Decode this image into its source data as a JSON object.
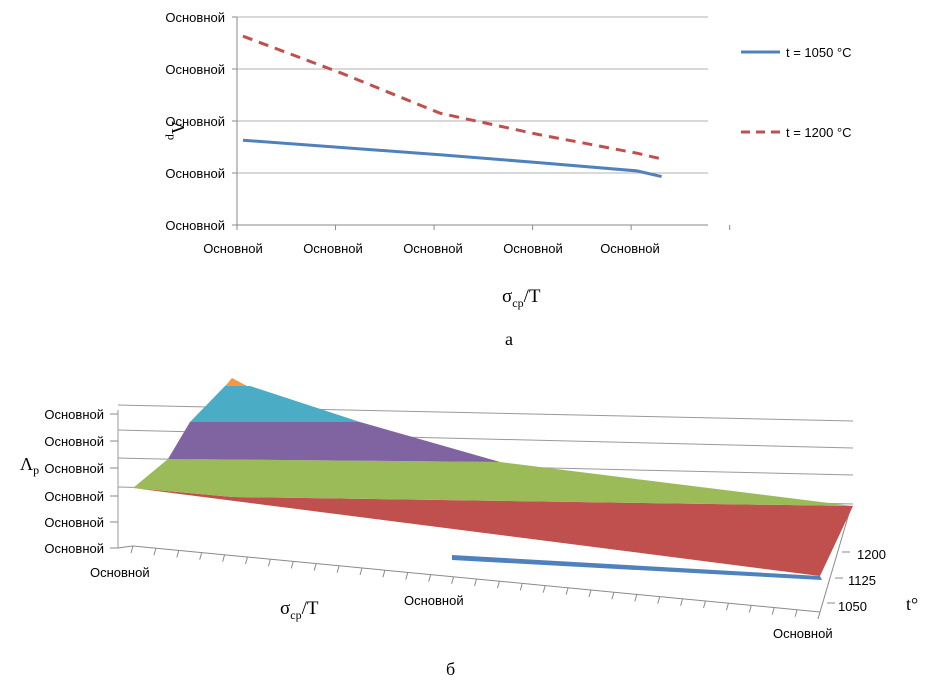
{
  "chart_data": [
    {
      "type": "line",
      "panel_label": "а",
      "xlabel_main": "σ",
      "xlabel_sub": "ср",
      "xlabel_tail": "/T",
      "ylabel": "Λ",
      "ylabel_sub": "р",
      "y_ticks": [
        "Основной",
        "Основной",
        "Основной",
        "Основной",
        "Основной"
      ],
      "x_ticks": [
        "Основной",
        "Основной",
        "Основной",
        "Основной",
        "Основной"
      ],
      "ylim": [
        0,
        4
      ],
      "x": [
        0,
        1,
        2,
        3,
        4,
        4.25
      ],
      "series": [
        {
          "name": "t = 1050 °C",
          "color": "#4f81bd",
          "style": "solid",
          "values": [
            1.63,
            1.49,
            1.35,
            1.2,
            1.04,
            0.93
          ]
        },
        {
          "name": "t = 1200 °C",
          "color": "#c0504d",
          "style": "dashed",
          "values": [
            3.63,
            2.92,
            2.15,
            1.74,
            1.38,
            1.27
          ]
        }
      ],
      "grid": true,
      "legend_position": "right"
    },
    {
      "type": "surface3d",
      "panel_label": "б",
      "xlabel_main": "σ",
      "xlabel_sub": "ср",
      "xlabel_tail": "/T",
      "ylabel": "Λ",
      "ylabel_sub": "р",
      "depth_label": "t°",
      "z_ticks": [
        "Основной",
        "Основной",
        "Основной",
        "Основной",
        "Основной",
        "Основной"
      ],
      "x_ticks": [
        "Основной",
        "Основной"
      ],
      "depth_ticks": [
        "1200",
        "1125",
        "1050",
        "Основной"
      ],
      "bands": [
        {
          "color": "#c0504d"
        },
        {
          "color": "#9bbb59"
        },
        {
          "color": "#8064a2"
        },
        {
          "color": "#4bacc6"
        },
        {
          "color": "#f79646"
        }
      ],
      "edge_color": "#4f81bd"
    }
  ]
}
